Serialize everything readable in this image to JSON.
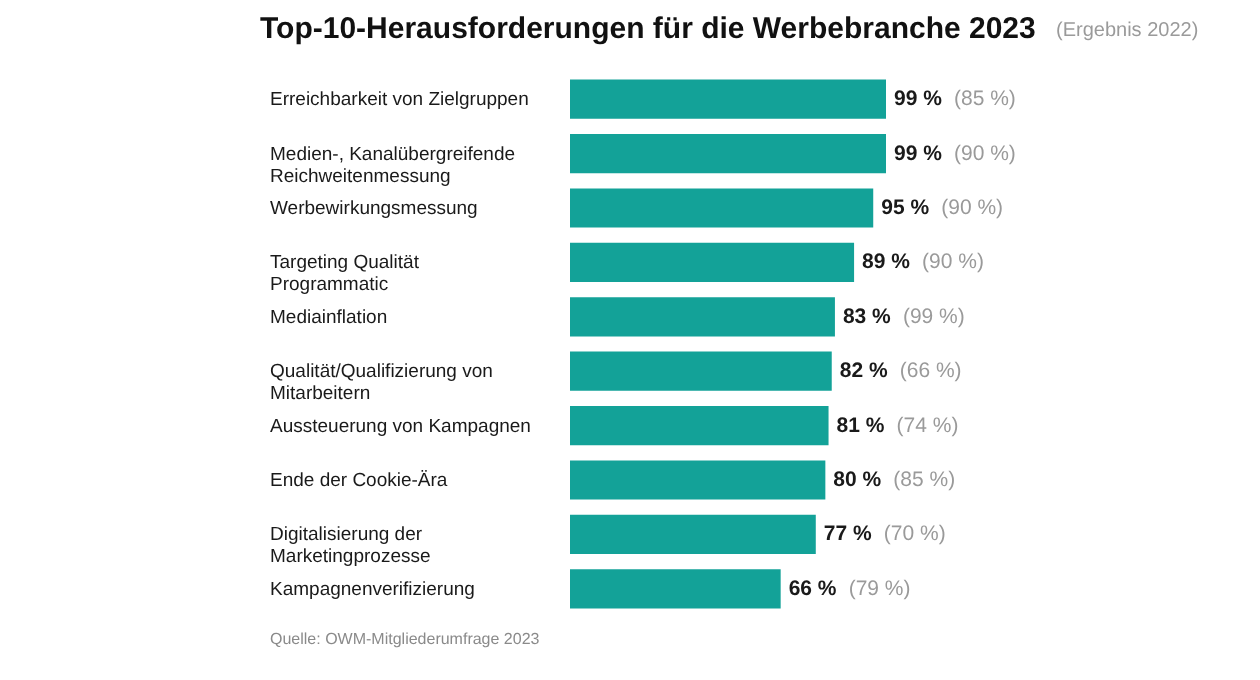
{
  "chart_data": {
    "type": "bar",
    "orientation": "horizontal",
    "title": "Top-10-Herausforderungen für die Werbebranche 2023",
    "subtitle": "(Ergebnis 2022)",
    "categories": [
      "Erreichbarkeit von Zielgruppen",
      "Medien-, Kanalübergreifende Reichweitenmessung",
      "Werbewirkungsmessung",
      "Targeting Qualität Programmatic",
      "Mediainflation",
      "Qualität/Qualifizierung von Mitarbeitern",
      "Aussteuerung von Kampagnen",
      "Ende der Cookie-Ära",
      "Digitalisierung der Marketingprozesse",
      "Kampagnenverifizierung"
    ],
    "values": [
      99,
      99,
      95,
      89,
      83,
      82,
      81,
      80,
      77,
      66
    ],
    "color": "#13a298",
    "value_labels": [
      "99 %",
      "99 %",
      "95 %",
      "89 %",
      "83 %",
      "82 %",
      "81 %",
      "80 %",
      "77 %",
      "66 %"
    ],
    "annotations": [
      "(85 %)",
      "(90 %)",
      "(90 %)",
      "(90 %)",
      "(99 %)",
      "(66 %)",
      "(74 %)",
      "(85 %)",
      "(70 %)",
      "(79 %)",
      "Quelle: OWM-Mitgliederumfrage 2023"
    ]
  }
}
